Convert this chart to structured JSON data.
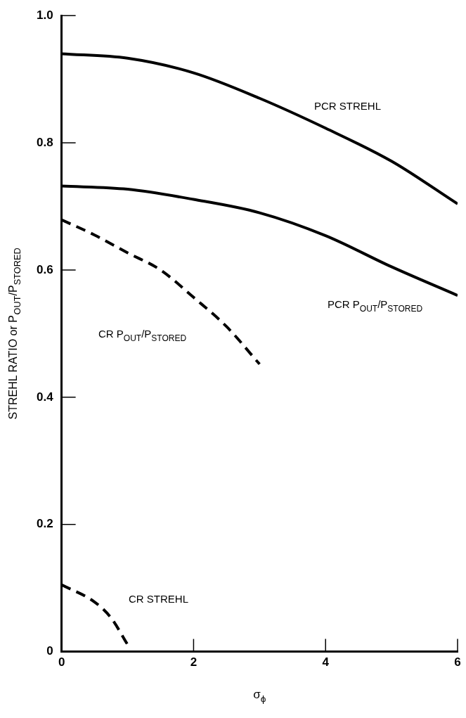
{
  "chart_data": {
    "type": "line",
    "xlabel": "σ$_{ϕ}$",
    "ylabel": "STREHL RATIO or P$_{OUT}$/P$_{STORED}$",
    "xlim": [
      0,
      6
    ],
    "xticks": [
      0,
      2,
      4,
      6
    ],
    "ylim": [
      0,
      1.0
    ],
    "yticks": [
      0,
      0.2,
      0.4,
      0.6,
      0.8,
      {
        "value": 1.0,
        "label": "1.0"
      }
    ],
    "grid": false,
    "legend": false,
    "marker": "none",
    "series": [
      {
        "name": "PCR STREHL",
        "color": "#000000",
        "line_style": "solid",
        "x": [
          0,
          1,
          2,
          3,
          4,
          5,
          6
        ],
        "values": [
          0.94,
          0.933,
          0.91,
          0.87,
          0.823,
          0.771,
          0.704
        ]
      },
      {
        "name": "PCR P$_{OUT}$/P$_{STORED}$",
        "color": "#000000",
        "line_style": "solid",
        "x": [
          0,
          1,
          2,
          3,
          4,
          5,
          6
        ],
        "values": [
          0.732,
          0.727,
          0.711,
          0.69,
          0.654,
          0.605,
          0.56
        ]
      },
      {
        "name": "CR P$_{OUT}$/P$_{STORED}$",
        "color": "#000000",
        "line_style": "dashed",
        "x": [
          0,
          0.5,
          1,
          1.5,
          2,
          2.5,
          3
        ],
        "values": [
          0.679,
          0.655,
          0.627,
          0.6,
          0.557,
          0.511,
          0.452
        ]
      },
      {
        "name": "CR STREHL",
        "color": "#000000",
        "line_style": "dashed",
        "x": [
          0,
          0.5,
          0.75,
          1
        ],
        "values": [
          0.105,
          0.078,
          0.053,
          0.011
        ]
      }
    ]
  }
}
